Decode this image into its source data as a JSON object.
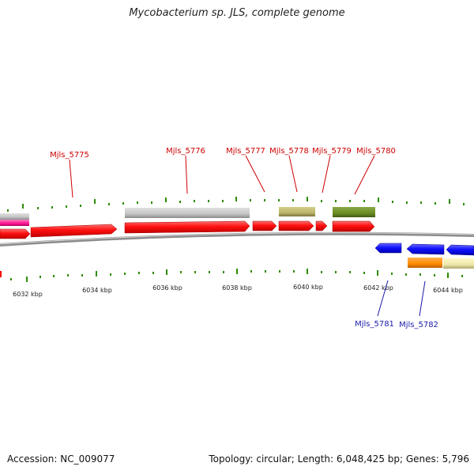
{
  "title": "Mycobacterium sp. JLS, complete genome",
  "footer": {
    "accession": "Accession: NC_009077",
    "summary": "Topology: circular; Length: 6,048,425 bp; Genes: 5,796"
  },
  "colors": {
    "forward_cds": "#ff0000",
    "reverse_cds": "#0000ff",
    "label_forward": "#cc0000",
    "label_reverse": "#1a1aaa",
    "tick": "#2e8b00",
    "backbone": "#888888"
  },
  "axis": {
    "unit": "kbp",
    "labels": [
      "6032 kbp",
      "6034 kbp",
      "6036 kbp",
      "6038 kbp",
      "6040 kbp",
      "6042 kbp",
      "6044 kbp"
    ]
  },
  "gene_labels": {
    "forward": [
      "Mjls_5775",
      "Mjls_5776",
      "Mjls_5777",
      "Mjls_5778",
      "Mjls_5779",
      "Mjls_5780"
    ],
    "reverse": [
      "Mjls_5781",
      "Mjls_5782"
    ]
  }
}
